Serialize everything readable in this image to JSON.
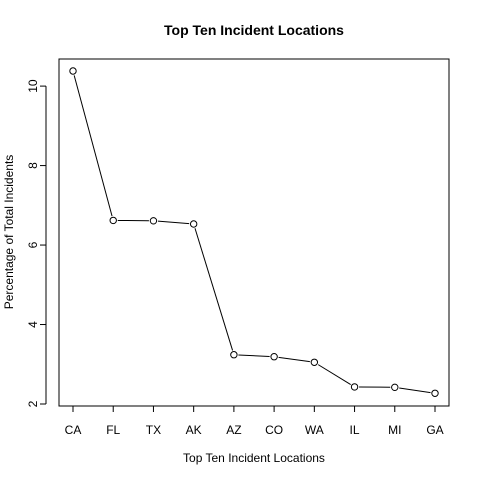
{
  "chart_data": {
    "type": "line",
    "title": "Top Ten Incident Locations",
    "xlabel": "Top Ten Incident Locations",
    "ylabel": "Percentage of Total Incidents",
    "categories": [
      "CA",
      "FL",
      "TX",
      "AK",
      "AZ",
      "CO",
      "WA",
      "IL",
      "MI",
      "GA"
    ],
    "values": [
      10.38,
      6.62,
      6.61,
      6.53,
      3.24,
      3.19,
      3.05,
      2.43,
      2.42,
      2.27
    ],
    "ylim": [
      2,
      10.38
    ],
    "yticks": [
      2,
      4,
      6,
      8,
      10
    ],
    "grid": false,
    "marker": "open-circle",
    "line_color": "#000000"
  }
}
